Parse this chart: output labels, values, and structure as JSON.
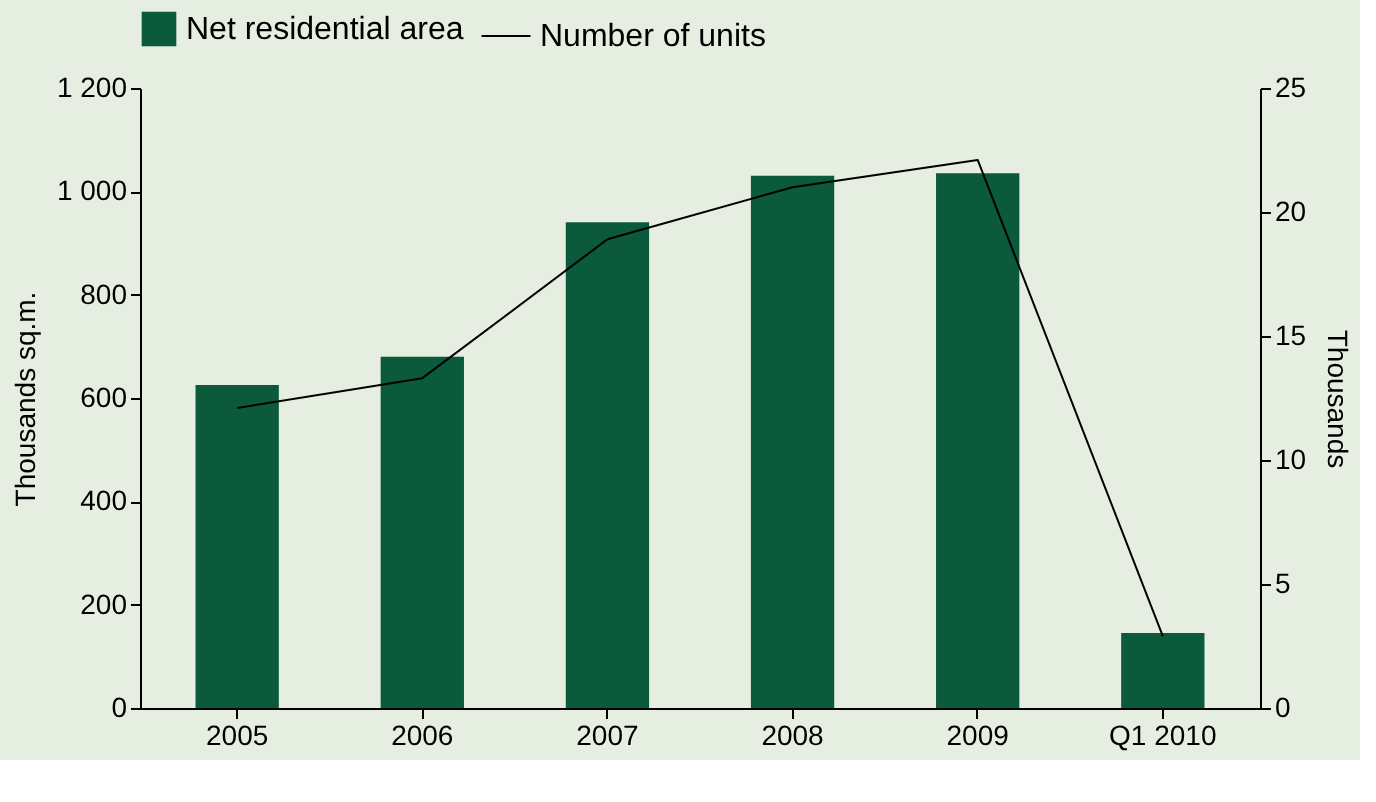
{
  "chart_data": {
    "type": "bar",
    "categories": [
      "2005",
      "2006",
      "2007",
      "2008",
      "2009",
      "Q1 2010"
    ],
    "series": [
      {
        "name": "Net residential area",
        "color": "#0b5a3c",
        "values": [
          625,
          680,
          940,
          1030,
          1035,
          145
        ]
      },
      {
        "name": "Number of units",
        "type": "line",
        "axis": "y2",
        "color": "#000000",
        "values": [
          12.1,
          13.3,
          18.9,
          21.0,
          22.1,
          2.9
        ]
      }
    ],
    "ylabel": "Thousands sq.m.",
    "y2label": "Thousands",
    "ylim": [
      0,
      1200
    ],
    "yticks": [
      0,
      200,
      400,
      600,
      800,
      {
        "value": 1000,
        "label": "1 000"
      },
      {
        "value": 1200,
        "label": "1 200"
      }
    ],
    "y2lim": [
      0,
      25
    ],
    "y2ticks": [
      0,
      5,
      10,
      15,
      20,
      25
    ],
    "grid": false,
    "legend": "top",
    "marker": "none",
    "line_style": "solid"
  }
}
